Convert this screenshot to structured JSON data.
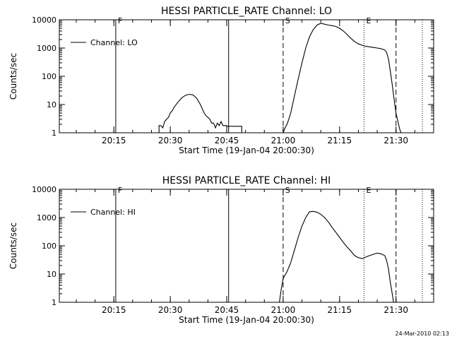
{
  "footer": {
    "timestamp": "24-Mar-2010 02:13"
  },
  "chart_data": [
    {
      "type": "line",
      "title": "HESSI PARTICLE_RATE Channel: LO",
      "xlabel": "Start Time (19-Jan-04 20:00:30)",
      "ylabel": "Counts/sec",
      "y_scale": "log",
      "xlim": [
        "20:00:30",
        "21:40:00"
      ],
      "ylim": [
        1,
        10000
      ],
      "x_ticks": [
        "20:15",
        "20:30",
        "20:45",
        "21:00",
        "21:15",
        "21:30"
      ],
      "y_ticks": [
        "1",
        "10",
        "100",
        "1000",
        "10000"
      ],
      "grid": false,
      "legend": {
        "position": "top-left",
        "entries": [
          "Channel: LO"
        ]
      },
      "vertical_markers": [
        {
          "time": "20:15:30",
          "style": "solid",
          "label": "F"
        },
        {
          "time": "20:45:30",
          "style": "solid",
          "label": ""
        },
        {
          "time": "21:00:00",
          "style": "dashed",
          "label": "S"
        },
        {
          "time": "21:21:30",
          "style": "dotted",
          "label": "E"
        },
        {
          "time": "21:30:00",
          "style": "dashed",
          "label": ""
        },
        {
          "time": "21:37:00",
          "style": "dotted",
          "label": ""
        }
      ],
      "series": [
        {
          "name": "Channel: LO",
          "segments": [
            {
              "x": [
                "20:27:00",
                "20:27:00",
                "20:27:30",
                "20:28:00",
                "20:28:30",
                "20:29:00",
                "20:29:30",
                "20:30:00",
                "20:30:30",
                "20:31:00",
                "20:32:00",
                "20:33:00",
                "20:34:00",
                "20:35:00",
                "20:36:00",
                "20:37:00",
                "20:38:00",
                "20:38:30",
                "20:39:00",
                "20:39:30",
                "20:40:00",
                "20:40:30",
                "20:41:00",
                "20:41:30",
                "20:42:00",
                "20:42:30",
                "20:43:00",
                "20:43:30",
                "20:44:00",
                "20:44:30",
                "20:45:00",
                "20:45:00",
                "20:46:00",
                "20:47:00",
                "20:48:00",
                "20:49:00",
                "20:49:00"
              ],
              "y": [
                1,
                1.8,
                1.8,
                1.5,
                2.5,
                3,
                3.5,
                5,
                6,
                8,
                12,
                17,
                21,
                23,
                22,
                17,
                10,
                7,
                5,
                4,
                3.5,
                3,
                2.2,
                2.2,
                1.5,
                2.2,
                1.8,
                2.5,
                1.8,
                1.8,
                1.8,
                1.7,
                1.7,
                1.7,
                1.7,
                1.7,
                1
              ]
            },
            {
              "x": [
                "21:00:00",
                "21:00:30",
                "21:01:00",
                "21:01:30",
                "21:02:00",
                "21:03:00",
                "21:04:00",
                "21:05:00",
                "21:06:00",
                "21:07:00",
                "21:08:00",
                "21:09:00",
                "21:10:00",
                "21:11:00",
                "21:12:00",
                "21:13:00",
                "21:14:00",
                "21:15:00",
                "21:16:00",
                "21:17:00",
                "21:18:00",
                "21:19:00",
                "21:20:00",
                "21:21:00",
                "21:22:00",
                "21:23:00",
                "21:24:00",
                "21:25:00",
                "21:26:00",
                "21:27:00",
                "21:27:30",
                "21:28:00",
                "21:28:30",
                "21:29:00",
                "21:29:30",
                "21:30:00",
                "21:30:30",
                "21:31:00",
                "21:31:20"
              ],
              "y": [
                1,
                1.5,
                2,
                3,
                5,
                20,
                80,
                300,
                1000,
                2500,
                4500,
                6500,
                7500,
                7000,
                6500,
                6200,
                5800,
                5000,
                4000,
                3000,
                2200,
                1700,
                1400,
                1250,
                1150,
                1100,
                1050,
                1000,
                950,
                850,
                700,
                400,
                150,
                50,
                15,
                5,
                2.5,
                1.3,
                1
              ]
            }
          ]
        }
      ]
    },
    {
      "type": "line",
      "title": "HESSI PARTICLE_RATE Channel: HI",
      "xlabel": "Start Time (19-Jan-04 20:00:30)",
      "ylabel": "Counts/sec",
      "y_scale": "log",
      "xlim": [
        "20:00:30",
        "21:40:00"
      ],
      "ylim": [
        1,
        10000
      ],
      "x_ticks": [
        "20:15",
        "20:30",
        "20:45",
        "21:00",
        "21:15",
        "21:30"
      ],
      "y_ticks": [
        "1",
        "10",
        "100",
        "1000",
        "10000"
      ],
      "grid": false,
      "legend": {
        "position": "top-left",
        "entries": [
          "Channel: HI"
        ]
      },
      "vertical_markers": [
        {
          "time": "20:15:30",
          "style": "solid",
          "label": "F"
        },
        {
          "time": "20:45:30",
          "style": "solid",
          "label": ""
        },
        {
          "time": "21:00:00",
          "style": "dashed",
          "label": "S"
        },
        {
          "time": "21:21:30",
          "style": "dotted",
          "label": "E"
        },
        {
          "time": "21:30:00",
          "style": "dashed",
          "label": ""
        },
        {
          "time": "21:37:00",
          "style": "dotted",
          "label": ""
        }
      ],
      "series": [
        {
          "name": "Channel: HI",
          "segments": [
            {
              "x": [
                "20:59:00",
                "20:59:30",
                "21:00:00",
                "21:01:00",
                "21:02:00",
                "21:03:00",
                "21:04:00",
                "21:05:00",
                "21:06:00",
                "21:07:00",
                "21:08:00",
                "21:09:00",
                "21:10:00",
                "21:11:00",
                "21:12:00",
                "21:13:00",
                "21:14:00",
                "21:15:00",
                "21:16:00",
                "21:17:00",
                "21:18:00",
                "21:19:00",
                "21:20:00",
                "21:21:00",
                "21:22:00",
                "21:23:00",
                "21:24:00",
                "21:25:00",
                "21:26:00",
                "21:27:00",
                "21:27:30",
                "21:28:00",
                "21:28:30",
                "21:29:00",
                "21:29:20"
              ],
              "y": [
                1,
                3,
                7,
                12,
                25,
                70,
                200,
                500,
                1000,
                1600,
                1650,
                1550,
                1300,
                1000,
                700,
                450,
                300,
                200,
                130,
                90,
                65,
                45,
                38,
                35,
                40,
                45,
                50,
                55,
                52,
                45,
                30,
                15,
                5,
                2,
                1
              ]
            }
          ]
        }
      ]
    }
  ]
}
